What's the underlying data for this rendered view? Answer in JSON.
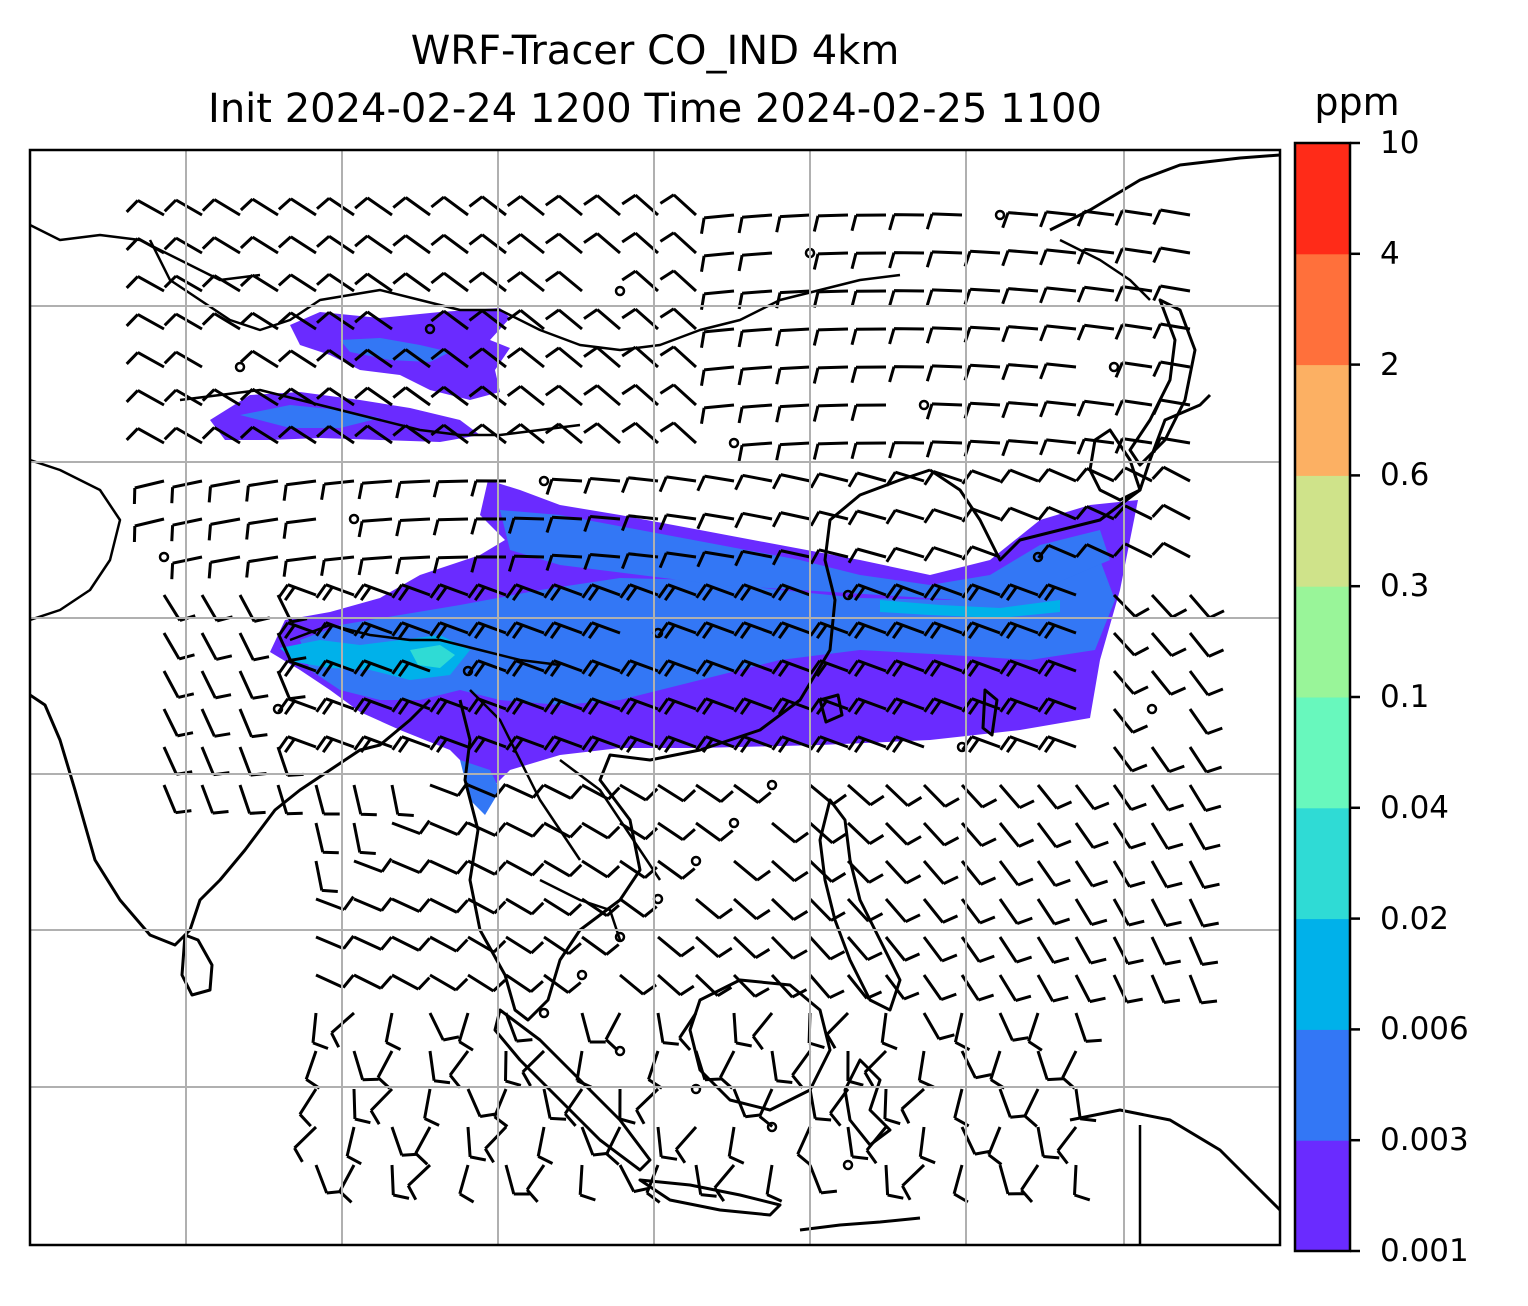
{
  "title": {
    "line1": "WRF-Tracer CO_IND 4km",
    "line2": "Init 2024-02-24 1200 Time 2024-02-25 1100"
  },
  "colorbar": {
    "units": "ppm",
    "levels": [
      "0.001",
      "0.003",
      "0.006",
      "0.02",
      "0.04",
      "0.1",
      "0.3",
      "0.6",
      "2",
      "4",
      "10"
    ],
    "colors": [
      "#6a2bff",
      "#3377f5",
      "#00b1ea",
      "#2fdbd5",
      "#68f8bd",
      "#99f599",
      "#cfe38a",
      "#fcb063",
      "#ff703b",
      "#ff2b18"
    ]
  },
  "map": {
    "grid": "on",
    "features": [
      "coastlines",
      "country-borders",
      "wind-barbs",
      "tracer-plume"
    ]
  }
}
